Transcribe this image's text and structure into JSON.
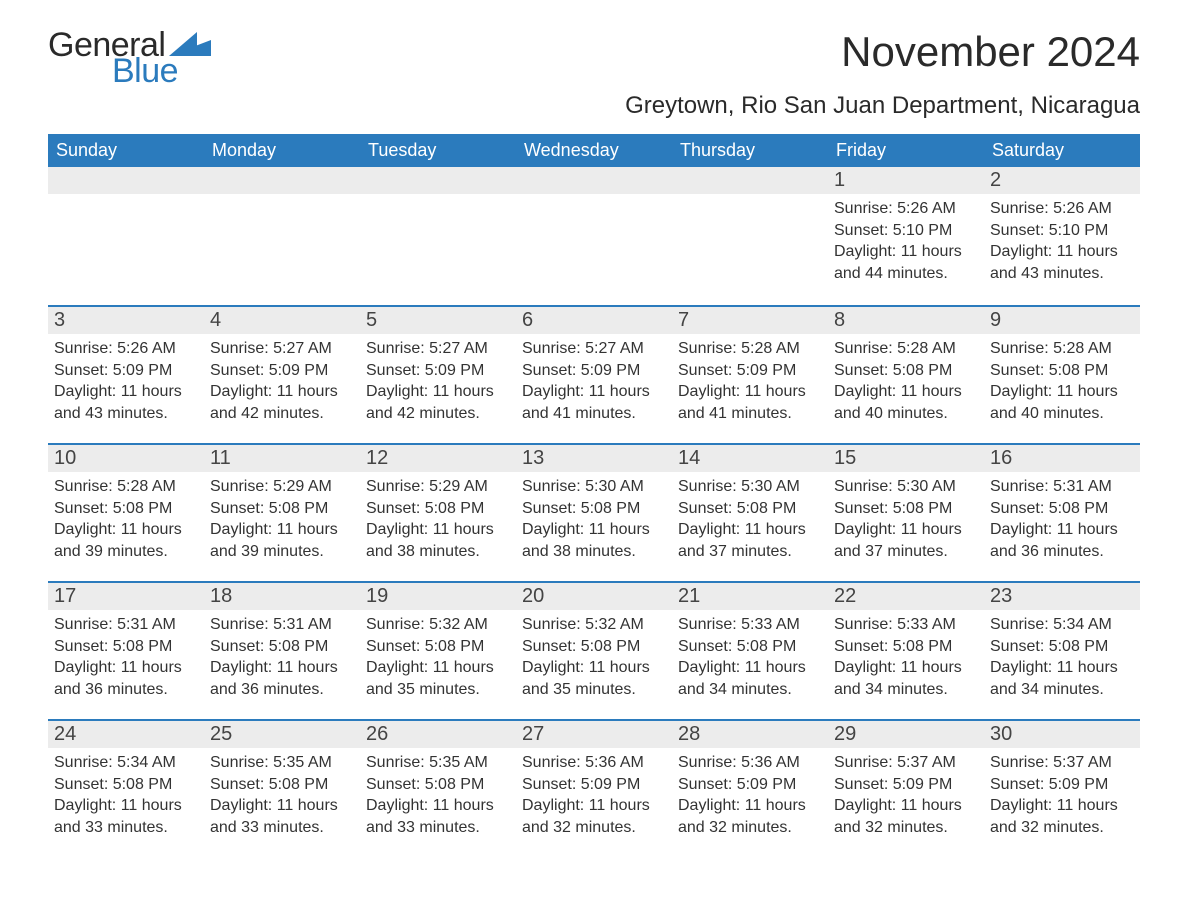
{
  "brand": {
    "word1": "General",
    "word2": "Blue",
    "flag_color": "#2b7bbd",
    "text_dark": "#2a2a2a"
  },
  "title": "November 2024",
  "location": "Greytown, Rio San Juan Department, Nicaragua",
  "colors": {
    "header_bg": "#2b7bbd",
    "header_text": "#ffffff",
    "row_band": "#ececec",
    "row_border": "#2b7bbd",
    "body_text": "#333333",
    "background": "#ffffff"
  },
  "typography": {
    "title_fontsize": 42,
    "location_fontsize": 24,
    "dayheader_fontsize": 18,
    "daynumber_fontsize": 20,
    "body_fontsize": 16
  },
  "day_headers": [
    "Sunday",
    "Monday",
    "Tuesday",
    "Wednesday",
    "Thursday",
    "Friday",
    "Saturday"
  ],
  "weeks": [
    [
      null,
      null,
      null,
      null,
      null,
      {
        "n": "1",
        "sunrise": "Sunrise: 5:26 AM",
        "sunset": "Sunset: 5:10 PM",
        "daylight": "Daylight: 11 hours and 44 minutes."
      },
      {
        "n": "2",
        "sunrise": "Sunrise: 5:26 AM",
        "sunset": "Sunset: 5:10 PM",
        "daylight": "Daylight: 11 hours and 43 minutes."
      }
    ],
    [
      {
        "n": "3",
        "sunrise": "Sunrise: 5:26 AM",
        "sunset": "Sunset: 5:09 PM",
        "daylight": "Daylight: 11 hours and 43 minutes."
      },
      {
        "n": "4",
        "sunrise": "Sunrise: 5:27 AM",
        "sunset": "Sunset: 5:09 PM",
        "daylight": "Daylight: 11 hours and 42 minutes."
      },
      {
        "n": "5",
        "sunrise": "Sunrise: 5:27 AM",
        "sunset": "Sunset: 5:09 PM",
        "daylight": "Daylight: 11 hours and 42 minutes."
      },
      {
        "n": "6",
        "sunrise": "Sunrise: 5:27 AM",
        "sunset": "Sunset: 5:09 PM",
        "daylight": "Daylight: 11 hours and 41 minutes."
      },
      {
        "n": "7",
        "sunrise": "Sunrise: 5:28 AM",
        "sunset": "Sunset: 5:09 PM",
        "daylight": "Daylight: 11 hours and 41 minutes."
      },
      {
        "n": "8",
        "sunrise": "Sunrise: 5:28 AM",
        "sunset": "Sunset: 5:08 PM",
        "daylight": "Daylight: 11 hours and 40 minutes."
      },
      {
        "n": "9",
        "sunrise": "Sunrise: 5:28 AM",
        "sunset": "Sunset: 5:08 PM",
        "daylight": "Daylight: 11 hours and 40 minutes."
      }
    ],
    [
      {
        "n": "10",
        "sunrise": "Sunrise: 5:28 AM",
        "sunset": "Sunset: 5:08 PM",
        "daylight": "Daylight: 11 hours and 39 minutes."
      },
      {
        "n": "11",
        "sunrise": "Sunrise: 5:29 AM",
        "sunset": "Sunset: 5:08 PM",
        "daylight": "Daylight: 11 hours and 39 minutes."
      },
      {
        "n": "12",
        "sunrise": "Sunrise: 5:29 AM",
        "sunset": "Sunset: 5:08 PM",
        "daylight": "Daylight: 11 hours and 38 minutes."
      },
      {
        "n": "13",
        "sunrise": "Sunrise: 5:30 AM",
        "sunset": "Sunset: 5:08 PM",
        "daylight": "Daylight: 11 hours and 38 minutes."
      },
      {
        "n": "14",
        "sunrise": "Sunrise: 5:30 AM",
        "sunset": "Sunset: 5:08 PM",
        "daylight": "Daylight: 11 hours and 37 minutes."
      },
      {
        "n": "15",
        "sunrise": "Sunrise: 5:30 AM",
        "sunset": "Sunset: 5:08 PM",
        "daylight": "Daylight: 11 hours and 37 minutes."
      },
      {
        "n": "16",
        "sunrise": "Sunrise: 5:31 AM",
        "sunset": "Sunset: 5:08 PM",
        "daylight": "Daylight: 11 hours and 36 minutes."
      }
    ],
    [
      {
        "n": "17",
        "sunrise": "Sunrise: 5:31 AM",
        "sunset": "Sunset: 5:08 PM",
        "daylight": "Daylight: 11 hours and 36 minutes."
      },
      {
        "n": "18",
        "sunrise": "Sunrise: 5:31 AM",
        "sunset": "Sunset: 5:08 PM",
        "daylight": "Daylight: 11 hours and 36 minutes."
      },
      {
        "n": "19",
        "sunrise": "Sunrise: 5:32 AM",
        "sunset": "Sunset: 5:08 PM",
        "daylight": "Daylight: 11 hours and 35 minutes."
      },
      {
        "n": "20",
        "sunrise": "Sunrise: 5:32 AM",
        "sunset": "Sunset: 5:08 PM",
        "daylight": "Daylight: 11 hours and 35 minutes."
      },
      {
        "n": "21",
        "sunrise": "Sunrise: 5:33 AM",
        "sunset": "Sunset: 5:08 PM",
        "daylight": "Daylight: 11 hours and 34 minutes."
      },
      {
        "n": "22",
        "sunrise": "Sunrise: 5:33 AM",
        "sunset": "Sunset: 5:08 PM",
        "daylight": "Daylight: 11 hours and 34 minutes."
      },
      {
        "n": "23",
        "sunrise": "Sunrise: 5:34 AM",
        "sunset": "Sunset: 5:08 PM",
        "daylight": "Daylight: 11 hours and 34 minutes."
      }
    ],
    [
      {
        "n": "24",
        "sunrise": "Sunrise: 5:34 AM",
        "sunset": "Sunset: 5:08 PM",
        "daylight": "Daylight: 11 hours and 33 minutes."
      },
      {
        "n": "25",
        "sunrise": "Sunrise: 5:35 AM",
        "sunset": "Sunset: 5:08 PM",
        "daylight": "Daylight: 11 hours and 33 minutes."
      },
      {
        "n": "26",
        "sunrise": "Sunrise: 5:35 AM",
        "sunset": "Sunset: 5:08 PM",
        "daylight": "Daylight: 11 hours and 33 minutes."
      },
      {
        "n": "27",
        "sunrise": "Sunrise: 5:36 AM",
        "sunset": "Sunset: 5:09 PM",
        "daylight": "Daylight: 11 hours and 32 minutes."
      },
      {
        "n": "28",
        "sunrise": "Sunrise: 5:36 AM",
        "sunset": "Sunset: 5:09 PM",
        "daylight": "Daylight: 11 hours and 32 minutes."
      },
      {
        "n": "29",
        "sunrise": "Sunrise: 5:37 AM",
        "sunset": "Sunset: 5:09 PM",
        "daylight": "Daylight: 11 hours and 32 minutes."
      },
      {
        "n": "30",
        "sunrise": "Sunrise: 5:37 AM",
        "sunset": "Sunset: 5:09 PM",
        "daylight": "Daylight: 11 hours and 32 minutes."
      }
    ]
  ]
}
